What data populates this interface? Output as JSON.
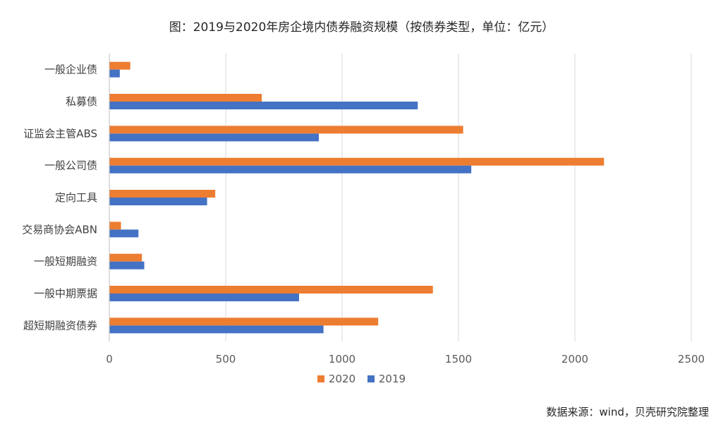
{
  "chart_data": {
    "type": "bar",
    "orientation": "horizontal",
    "title": "图：2019与2020年房企境内债券融资规模（按债券类型，单位：亿元）",
    "source": "数据来源：wind，贝壳研究院整理",
    "categories": [
      "一般企业债",
      "私募债",
      "证监会主管ABS",
      "一般公司债",
      "定向工具",
      "交易商协会ABN",
      "一般短期融资",
      "一般中期票据",
      "超短期融资债券"
    ],
    "series": [
      {
        "name": "2020",
        "color": "#ED7D31",
        "values": [
          90,
          655,
          1520,
          2125,
          455,
          50,
          140,
          1390,
          1155
        ]
      },
      {
        "name": "2019",
        "color": "#4472C4",
        "values": [
          45,
          1325,
          900,
          1555,
          420,
          125,
          150,
          815,
          920
        ]
      }
    ],
    "xlim": [
      0,
      2500
    ],
    "xticks": [
      "0",
      "500",
      "1000",
      "1500",
      "2000",
      "2500"
    ],
    "grid": true,
    "legend_position": "bottom"
  }
}
